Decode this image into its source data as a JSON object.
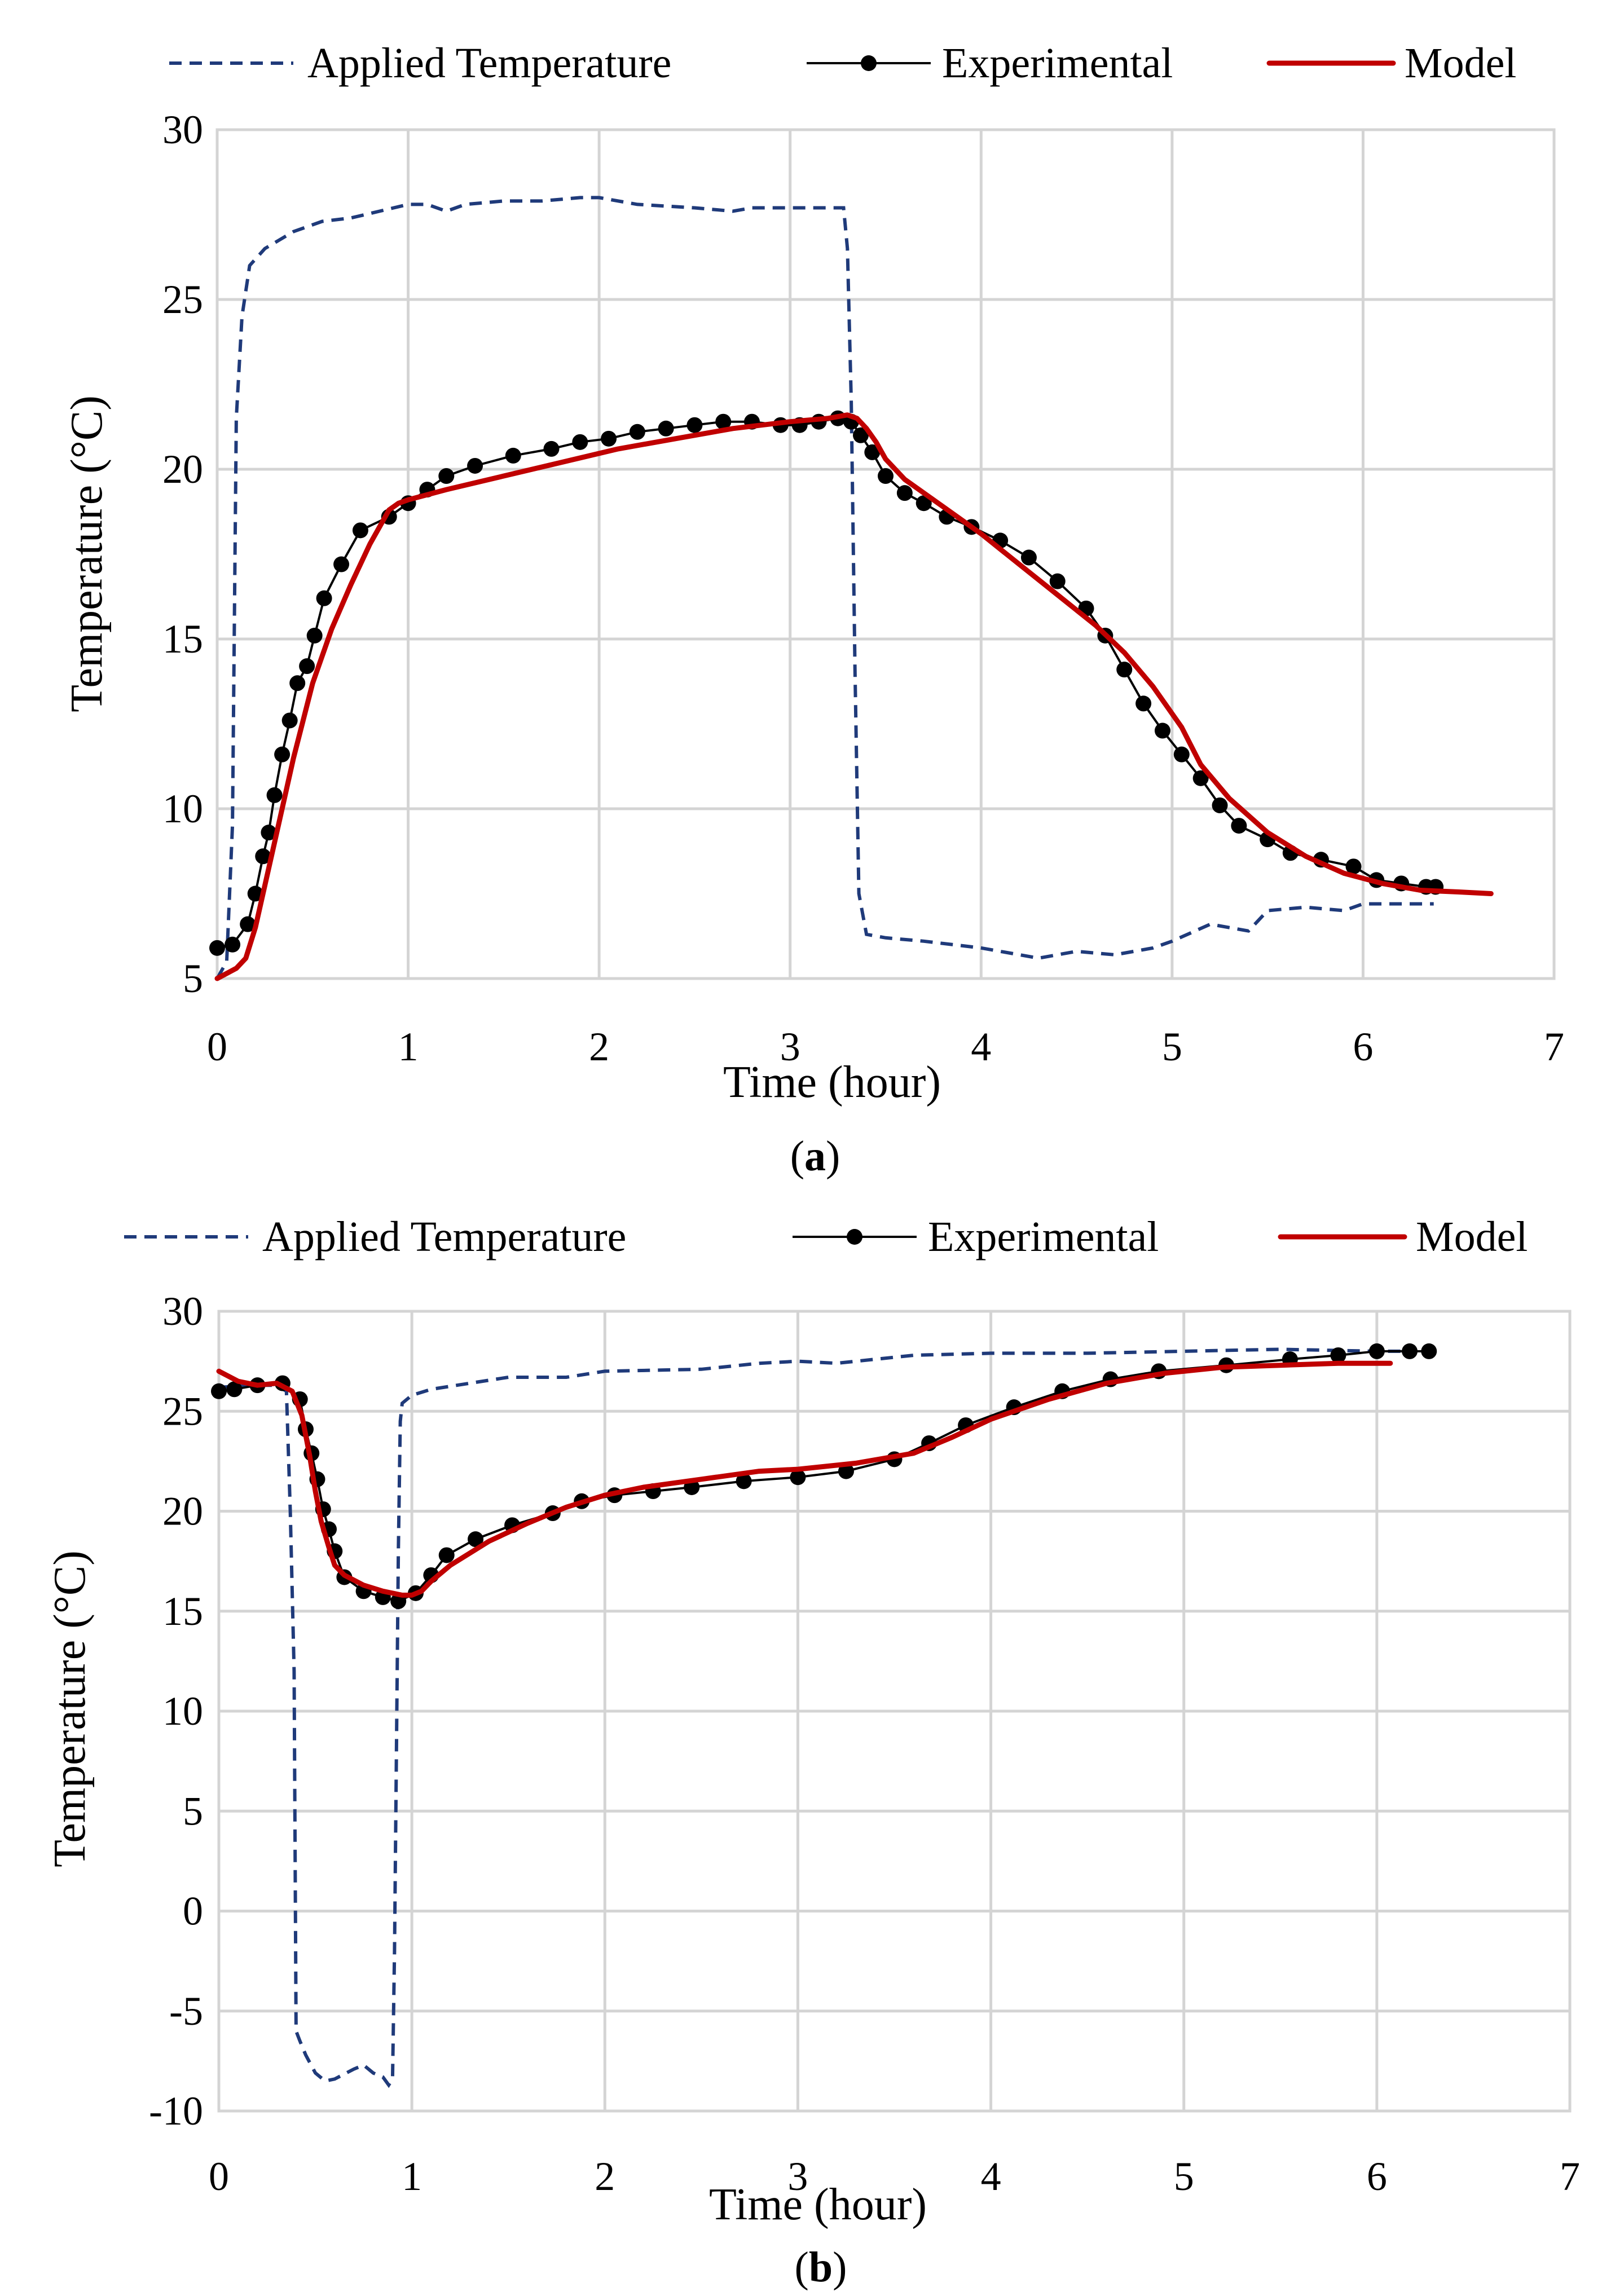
{
  "chart_data": [
    {
      "type": "line",
      "panel": "a",
      "caption_letter": "a",
      "xlabel": "Time (hour)",
      "ylabel": "Temperature (°C)",
      "xlim": [
        0,
        7
      ],
      "ylim": [
        5,
        30
      ],
      "xticks": [
        0,
        1,
        2,
        3,
        4,
        5,
        6,
        7
      ],
      "yticks": [
        5,
        10,
        15,
        20,
        25,
        30
      ],
      "grid": true,
      "legend": [
        "Applied Temperature",
        "Experimental",
        "Model"
      ],
      "legend_position": "top",
      "series": [
        {
          "name": "Applied Temperature",
          "style": "dashed",
          "color": "#1f3a7a",
          "x": [
            0,
            0.05,
            0.08,
            0.1,
            0.13,
            0.17,
            0.25,
            0.4,
            0.55,
            0.7,
            0.85,
            1.0,
            1.1,
            1.2,
            1.3,
            1.5,
            1.7,
            1.9,
            2.0,
            2.2,
            2.5,
            2.7,
            2.8,
            3.0,
            3.2,
            3.28,
            3.3,
            3.32,
            3.34,
            3.36,
            3.4,
            3.5,
            3.7,
            4.0,
            4.3,
            4.5,
            4.7,
            4.9,
            5.0,
            5.2,
            5.3,
            5.4,
            5.45,
            5.5,
            5.7,
            5.9,
            6.0,
            6.2,
            6.37
          ],
          "y": [
            5,
            5.5,
            9.5,
            21.5,
            24.5,
            26,
            26.5,
            27,
            27.3,
            27.4,
            27.6,
            27.8,
            27.8,
            27.6,
            27.8,
            27.9,
            27.9,
            28,
            28,
            27.8,
            27.7,
            27.6,
            27.7,
            27.7,
            27.7,
            27.7,
            26.5,
            22,
            14,
            7.5,
            6.3,
            6.2,
            6.1,
            5.9,
            5.6,
            5.8,
            5.7,
            5.9,
            6.1,
            6.6,
            6.5,
            6.4,
            6.7,
            7.0,
            7.1,
            7.0,
            7.2,
            7.2,
            7.2
          ]
        },
        {
          "name": "Experimental",
          "style": "line-marker",
          "color": "#000000",
          "x": [
            0,
            0.08,
            0.16,
            0.2,
            0.24,
            0.27,
            0.3,
            0.34,
            0.38,
            0.42,
            0.47,
            0.51,
            0.56,
            0.65,
            0.75,
            0.9,
            1.0,
            1.1,
            1.2,
            1.35,
            1.55,
            1.75,
            1.9,
            2.05,
            2.2,
            2.35,
            2.5,
            2.65,
            2.8,
            2.95,
            3.05,
            3.15,
            3.25,
            3.32,
            3.37,
            3.43,
            3.5,
            3.6,
            3.7,
            3.82,
            3.95,
            4.1,
            4.25,
            4.4,
            4.55,
            4.65,
            4.75,
            4.85,
            4.95,
            5.05,
            5.15,
            5.25,
            5.35,
            5.5,
            5.62,
            5.78,
            5.95,
            6.07,
            6.2,
            6.33,
            6.38
          ],
          "y": [
            5.9,
            6.0,
            6.6,
            7.5,
            8.6,
            9.3,
            10.4,
            11.6,
            12.6,
            13.7,
            14.2,
            15.1,
            16.2,
            17.2,
            18.2,
            18.6,
            19.0,
            19.4,
            19.8,
            20.1,
            20.4,
            20.6,
            20.8,
            20.9,
            21.1,
            21.2,
            21.3,
            21.4,
            21.4,
            21.3,
            21.3,
            21.4,
            21.5,
            21.4,
            21.0,
            20.5,
            19.8,
            19.3,
            19.0,
            18.6,
            18.3,
            17.9,
            17.4,
            16.7,
            15.9,
            15.1,
            14.1,
            13.1,
            12.3,
            11.6,
            10.9,
            10.1,
            9.5,
            9.1,
            8.7,
            8.5,
            8.3,
            7.9,
            7.8,
            7.7,
            7.7
          ]
        },
        {
          "name": "Model",
          "style": "solid",
          "color": "#c00000",
          "x": [
            0,
            0.1,
            0.15,
            0.2,
            0.3,
            0.4,
            0.5,
            0.6,
            0.7,
            0.8,
            0.9,
            0.95,
            1.0,
            1.2,
            1.5,
            1.8,
            2.1,
            2.4,
            2.7,
            3.0,
            3.2,
            3.3,
            3.35,
            3.4,
            3.45,
            3.5,
            3.6,
            3.8,
            4.0,
            4.2,
            4.4,
            4.6,
            4.75,
            4.9,
            5.05,
            5.15,
            5.3,
            5.5,
            5.7,
            5.9,
            6.1,
            6.3,
            6.5,
            6.67
          ],
          "y": [
            5.0,
            5.3,
            5.6,
            6.5,
            9.0,
            11.5,
            13.7,
            15.3,
            16.6,
            17.8,
            18.8,
            19.0,
            19.1,
            19.4,
            19.8,
            20.2,
            20.6,
            20.9,
            21.2,
            21.4,
            21.5,
            21.6,
            21.5,
            21.2,
            20.8,
            20.3,
            19.7,
            18.9,
            18.1,
            17.2,
            16.3,
            15.4,
            14.6,
            13.6,
            12.4,
            11.3,
            10.3,
            9.3,
            8.6,
            8.1,
            7.8,
            7.6,
            7.55,
            7.5
          ]
        }
      ]
    },
    {
      "type": "line",
      "panel": "b",
      "caption_letter": "b",
      "xlabel": "Time (hour)",
      "ylabel": "Temperature (°C)",
      "xlim": [
        0,
        7
      ],
      "ylim": [
        -10,
        30
      ],
      "xticks": [
        0,
        1,
        2,
        3,
        4,
        5,
        6,
        7
      ],
      "yticks": [
        -10,
        -5,
        0,
        5,
        10,
        15,
        20,
        25,
        30
      ],
      "grid": true,
      "legend": [
        "Applied Temperature",
        "Experimental",
        "Model"
      ],
      "legend_position": "top",
      "series": [
        {
          "name": "Applied Temperature",
          "style": "dashed",
          "color": "#1f3a7a",
          "x": [
            0,
            0.2,
            0.3,
            0.35,
            0.37,
            0.39,
            0.4,
            0.42,
            0.45,
            0.5,
            0.55,
            0.6,
            0.7,
            0.75,
            0.8,
            0.85,
            0.88,
            0.9,
            0.91,
            0.92,
            0.93,
            0.94,
            0.95,
            1.0,
            1.1,
            1.3,
            1.5,
            1.8,
            2.0,
            2.5,
            2.8,
            3.0,
            3.2,
            3.4,
            3.6,
            4.0,
            4.5,
            5.0,
            5.5,
            6.0,
            6.2
          ],
          "y": [
            26.2,
            26.3,
            26.3,
            26.0,
            20,
            12,
            -6,
            -6.5,
            -7.2,
            -8.1,
            -8.5,
            -8.4,
            -7.9,
            -7.7,
            -8.1,
            -8.3,
            -8.7,
            -8.4,
            -2,
            8,
            18,
            24.5,
            25.4,
            25.8,
            26.1,
            26.4,
            26.7,
            26.7,
            27.0,
            27.1,
            27.4,
            27.5,
            27.4,
            27.6,
            27.8,
            27.9,
            27.9,
            28.0,
            28.1,
            28.0,
            28.0
          ]
        },
        {
          "name": "Experimental",
          "style": "line-marker",
          "color": "#000000",
          "x": [
            0,
            0.08,
            0.2,
            0.33,
            0.42,
            0.45,
            0.48,
            0.51,
            0.54,
            0.57,
            0.6,
            0.65,
            0.75,
            0.85,
            0.93,
            1.02,
            1.1,
            1.18,
            1.33,
            1.52,
            1.73,
            1.88,
            2.05,
            2.25,
            2.45,
            2.72,
            3.0,
            3.25,
            3.5,
            3.68,
            3.87,
            4.12,
            4.37,
            4.62,
            4.87,
            5.22,
            5.55,
            5.8,
            6.0,
            6.17,
            6.27
          ],
          "y": [
            26.0,
            26.1,
            26.3,
            26.4,
            25.6,
            24.1,
            22.9,
            21.6,
            20.1,
            19.1,
            18.0,
            16.7,
            16.0,
            15.7,
            15.5,
            15.9,
            16.8,
            17.8,
            18.6,
            19.3,
            19.9,
            20.5,
            20.8,
            21.0,
            21.2,
            21.5,
            21.7,
            22.0,
            22.6,
            23.4,
            24.3,
            25.2,
            26.0,
            26.6,
            27.0,
            27.3,
            27.6,
            27.8,
            28.0,
            28.0,
            28.0
          ]
        },
        {
          "name": "Model",
          "style": "solid",
          "color": "#c00000",
          "x": [
            0,
            0.1,
            0.2,
            0.3,
            0.38,
            0.43,
            0.47,
            0.5,
            0.53,
            0.57,
            0.6,
            0.65,
            0.75,
            0.85,
            0.95,
            1.0,
            1.05,
            1.1,
            1.2,
            1.4,
            1.6,
            1.8,
            2.0,
            2.2,
            2.5,
            2.8,
            3.0,
            3.3,
            3.6,
            3.8,
            4.0,
            4.3,
            4.6,
            4.9,
            5.2,
            5.5,
            5.8,
            6.0,
            6.07
          ],
          "y": [
            27.0,
            26.5,
            26.3,
            26.4,
            26.0,
            24.8,
            22.8,
            21.0,
            19.5,
            18.2,
            17.3,
            16.8,
            16.3,
            16.0,
            15.8,
            15.8,
            16.0,
            16.5,
            17.3,
            18.5,
            19.4,
            20.2,
            20.8,
            21.2,
            21.6,
            22.0,
            22.1,
            22.4,
            22.9,
            23.7,
            24.6,
            25.6,
            26.4,
            26.9,
            27.2,
            27.3,
            27.4,
            27.4,
            27.4
          ]
        }
      ]
    }
  ]
}
